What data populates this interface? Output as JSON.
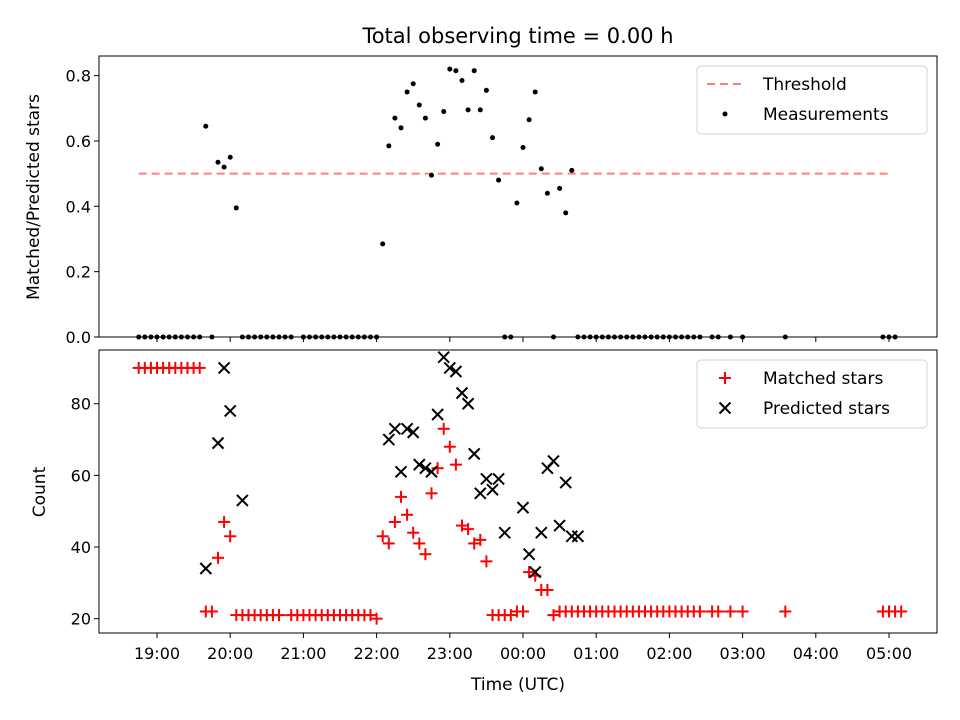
{
  "figure": {
    "title": "Total observing time = 0.00 h"
  },
  "chart_data": [
    {
      "type": "scatter",
      "ylabel": "Matched/Predicted stars",
      "xlabel": "",
      "ylim": [
        0,
        0.86
      ],
      "yticks": [
        0.0,
        0.2,
        0.4,
        0.6,
        0.8
      ],
      "ytick_labels": [
        "0.0",
        "0.2",
        "0.4",
        "0.6",
        "0.8"
      ],
      "legend_position": "top-right",
      "grid": false,
      "series": [
        {
          "name": "Threshold",
          "kind": "dashed-line",
          "color": "#ff7f7f",
          "x": [
            "18:45",
            "05:00"
          ],
          "y": [
            0.5,
            0.5
          ]
        },
        {
          "name": "Measurements",
          "kind": "dots",
          "color": "#000000",
          "x": [
            "18:45",
            "18:50",
            "18:55",
            "19:00",
            "19:05",
            "19:10",
            "19:15",
            "19:20",
            "19:25",
            "19:30",
            "19:35",
            "19:40",
            "19:45",
            "19:50",
            "19:55",
            "20:00",
            "20:05",
            "20:10",
            "20:15",
            "20:20",
            "20:25",
            "20:30",
            "20:35",
            "20:40",
            "20:45",
            "20:50",
            "21:00",
            "21:05",
            "21:10",
            "21:15",
            "21:20",
            "21:25",
            "21:30",
            "21:35",
            "21:40",
            "21:45",
            "21:50",
            "21:55",
            "22:00",
            "22:05",
            "22:10",
            "22:15",
            "22:20",
            "22:25",
            "22:30",
            "22:35",
            "22:40",
            "22:45",
            "22:50",
            "22:55",
            "23:00",
            "23:05",
            "23:10",
            "23:15",
            "23:20",
            "23:25",
            "23:30",
            "23:35",
            "23:40",
            "23:45",
            "23:50",
            "23:55",
            "00:00",
            "00:05",
            "00:10",
            "00:15",
            "00:20",
            "00:25",
            "00:30",
            "00:35",
            "00:40",
            "00:45",
            "00:50",
            "00:55",
            "01:00",
            "01:05",
            "01:10",
            "01:15",
            "01:20",
            "01:25",
            "01:30",
            "01:35",
            "01:40",
            "01:45",
            "01:50",
            "01:55",
            "02:00",
            "02:05",
            "02:10",
            "02:15",
            "02:20",
            "02:25",
            "02:35",
            "02:40",
            "02:50",
            "03:00",
            "03:35",
            "04:55",
            "05:00",
            "05:05"
          ],
          "y": [
            0,
            0,
            0,
            0,
            0,
            0,
            0,
            0,
            0,
            0,
            0,
            0.645,
            0,
            0.535,
            0.52,
            0.55,
            0.395,
            0,
            0,
            0,
            0,
            0,
            0,
            0,
            0,
            0,
            0,
            0,
            0,
            0,
            0,
            0,
            0,
            0,
            0,
            0,
            0,
            0,
            0,
            0.285,
            0.585,
            0.67,
            0.64,
            0.75,
            0.775,
            0.71,
            0.67,
            0.495,
            0.59,
            0.69,
            0.82,
            0.815,
            0.785,
            0.695,
            0.815,
            0.695,
            0.755,
            0.61,
            0.48,
            0,
            0,
            0.41,
            0.58,
            0.665,
            0.75,
            0.515,
            0.44,
            0,
            0.455,
            0.38,
            0.51,
            0,
            0,
            0,
            0,
            0,
            0,
            0,
            0,
            0,
            0,
            0,
            0,
            0,
            0,
            0,
            0,
            0,
            0,
            0,
            0,
            0,
            0,
            0,
            0,
            0,
            0,
            0,
            0,
            0
          ]
        }
      ]
    },
    {
      "type": "scatter",
      "ylabel": "Count",
      "xlabel": "Time (UTC)",
      "ylim": [
        16,
        95
      ],
      "yticks": [
        20,
        40,
        60,
        80
      ],
      "ytick_labels": [
        "20",
        "40",
        "60",
        "80"
      ],
      "xtick_labels": [
        "19:00",
        "20:00",
        "21:00",
        "22:00",
        "23:00",
        "00:00",
        "01:00",
        "02:00",
        "03:00",
        "04:00",
        "05:00"
      ],
      "legend_position": "top-right",
      "grid": false,
      "series": [
        {
          "name": "Matched stars",
          "marker": "plus",
          "color": "#ff0000",
          "x": [
            "18:45",
            "18:50",
            "18:55",
            "19:00",
            "19:05",
            "19:10",
            "19:15",
            "19:20",
            "19:25",
            "19:30",
            "19:35",
            "19:40",
            "19:45",
            "19:50",
            "19:55",
            "20:00",
            "20:05",
            "20:10",
            "20:15",
            "20:20",
            "20:25",
            "20:30",
            "20:35",
            "20:40",
            "20:50",
            "20:55",
            "21:00",
            "21:05",
            "21:10",
            "21:15",
            "21:20",
            "21:25",
            "21:30",
            "21:35",
            "21:40",
            "21:45",
            "21:50",
            "21:55",
            "22:00",
            "22:05",
            "22:10",
            "22:15",
            "22:20",
            "22:25",
            "22:30",
            "22:35",
            "22:40",
            "22:45",
            "22:50",
            "22:55",
            "23:00",
            "23:05",
            "23:10",
            "23:15",
            "23:20",
            "23:25",
            "23:30",
            "23:35",
            "23:40",
            "23:45",
            "23:50",
            "23:55",
            "00:00",
            "00:05",
            "00:10",
            "00:15",
            "00:20",
            "00:25",
            "00:30",
            "00:35",
            "00:40",
            "00:45",
            "00:50",
            "00:55",
            "01:00",
            "01:05",
            "01:10",
            "01:15",
            "01:20",
            "01:25",
            "01:30",
            "01:35",
            "01:40",
            "01:45",
            "01:50",
            "01:55",
            "02:00",
            "02:05",
            "02:10",
            "02:15",
            "02:20",
            "02:25",
            "02:35",
            "02:40",
            "02:50",
            "03:00",
            "03:35",
            "04:55",
            "05:00",
            "05:05",
            "05:10"
          ],
          "y": [
            90,
            90,
            90,
            90,
            90,
            90,
            90,
            90,
            90,
            90,
            90,
            22,
            22,
            37,
            47,
            43,
            21,
            21,
            21,
            21,
            21,
            21,
            21,
            21,
            21,
            21,
            21,
            21,
            21,
            21,
            21,
            21,
            21,
            21,
            21,
            21,
            21,
            21,
            20,
            43,
            41,
            47,
            54,
            49,
            44,
            41,
            38,
            55,
            62,
            73,
            68,
            63,
            46,
            45,
            41,
            42,
            36,
            21,
            21,
            21,
            21,
            22,
            22,
            33,
            32,
            28,
            28,
            21,
            22,
            22,
            22,
            22,
            22,
            22,
            22,
            22,
            22,
            22,
            22,
            22,
            22,
            22,
            22,
            22,
            22,
            22,
            22,
            22,
            22,
            22,
            22,
            22,
            22,
            22,
            22,
            22,
            22,
            22,
            22,
            22,
            22
          ]
        },
        {
          "name": "Predicted stars",
          "marker": "x",
          "color": "#000000",
          "x": [
            "19:40",
            "19:50",
            "19:55",
            "20:00",
            "20:10",
            "22:10",
            "22:15",
            "22:20",
            "22:25",
            "22:30",
            "22:35",
            "22:40",
            "22:45",
            "22:50",
            "22:55",
            "23:00",
            "23:05",
            "23:10",
            "23:15",
            "23:20",
            "23:25",
            "23:30",
            "23:35",
            "23:40",
            "23:45",
            "24:00",
            "00:05",
            "00:10",
            "00:15",
            "00:20",
            "00:25",
            "00:30",
            "00:35",
            "00:40",
            "00:45"
          ],
          "y": [
            34,
            69,
            90,
            78,
            53,
            70,
            73,
            61,
            73,
            72,
            63,
            62,
            61,
            77,
            93,
            90,
            89,
            83,
            80,
            66,
            55,
            59,
            56,
            59,
            44,
            51,
            38,
            33,
            44,
            62,
            64,
            46,
            58,
            43,
            43
          ]
        }
      ]
    }
  ]
}
